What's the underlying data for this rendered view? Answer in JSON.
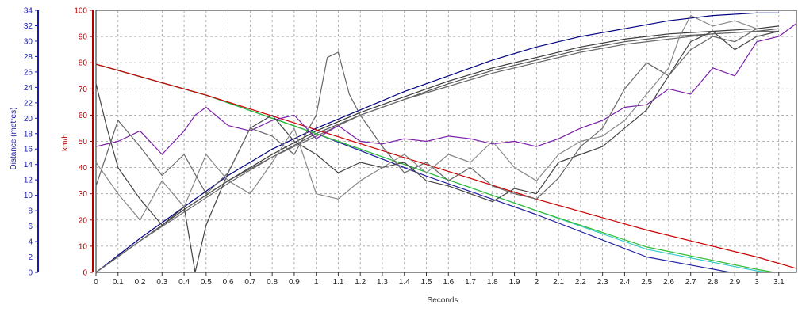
{
  "chart_data": {
    "type": "line",
    "xlabel": "Seconds",
    "xlim": [
      0,
      3.18
    ],
    "x_ticks": [
      "0",
      "0.1",
      "0.2",
      "0.3",
      "0.4",
      "0.5",
      "0.6",
      "0.7",
      "0.8",
      "0.9",
      "1",
      "1.1",
      "1.2",
      "1.3",
      "1.4",
      "1.5",
      "1.6",
      "1.7",
      "1.8",
      "1.9",
      "2",
      "2.1",
      "2.2",
      "2.3",
      "2.4",
      "2.5",
      "2.6",
      "2.7",
      "2.8",
      "2.9",
      "3",
      "3.1"
    ],
    "grid": true,
    "axes": {
      "distance": {
        "label": "Distance (metres)",
        "range": [
          0,
          34
        ],
        "ticks": [
          0,
          2,
          4,
          6,
          8,
          10,
          12,
          14,
          16,
          18,
          20,
          22,
          24,
          26,
          28,
          30,
          32,
          34
        ],
        "color": "#1a1aa6"
      },
      "speed": {
        "label": "km/h",
        "range": [
          0,
          100
        ],
        "ticks": [
          0,
          10,
          20,
          30,
          40,
          50,
          60,
          70,
          80,
          90,
          100
        ],
        "color": "#b00000"
      }
    },
    "series": [
      {
        "axis": "speed",
        "color": "#000080",
        "x": [
          0,
          0.2,
          0.4,
          0.6,
          0.8,
          1.0,
          1.2,
          1.4,
          1.6,
          1.8,
          2.0,
          2.2,
          2.4,
          2.6,
          2.8,
          3.0,
          3.1
        ],
        "values": [
          0,
          13,
          25,
          37,
          47,
          55,
          62,
          69,
          75,
          81,
          86,
          90,
          93,
          96,
          98,
          99,
          99
        ]
      },
      {
        "axis": "speed",
        "color": "#3a3a3a",
        "x": [
          0,
          0.2,
          0.4,
          0.6,
          0.8,
          1.0,
          1.2,
          1.4,
          1.6,
          1.8,
          2.0,
          2.2,
          2.4,
          2.6,
          2.8,
          3.0,
          3.1
        ],
        "values": [
          0,
          12,
          24,
          35,
          45,
          54,
          61,
          67,
          73,
          78,
          82,
          86,
          89,
          91,
          92,
          93,
          94
        ]
      },
      {
        "axis": "speed",
        "color": "#555555",
        "x": [
          0,
          0.2,
          0.4,
          0.6,
          0.8,
          1.0,
          1.2,
          1.4,
          1.6,
          1.8,
          2.0,
          2.2,
          2.4,
          2.6,
          2.8,
          3.0,
          3.1
        ],
        "values": [
          0,
          12,
          24,
          35,
          44,
          53,
          60,
          66,
          72,
          77,
          81,
          85,
          88,
          90,
          91,
          92,
          93
        ]
      },
      {
        "axis": "speed",
        "color": "#6a6a6a",
        "x": [
          0,
          0.2,
          0.4,
          0.6,
          0.8,
          1.0,
          1.2,
          1.4,
          1.6,
          1.8,
          2.0,
          2.2,
          2.4,
          2.6,
          2.8,
          3.0,
          3.1
        ],
        "values": [
          0,
          12,
          23,
          34,
          44,
          52,
          60,
          66,
          71,
          76,
          80,
          84,
          87,
          89,
          91,
          92,
          92
        ]
      },
      {
        "axis": "distance",
        "color": "#2020a0",
        "x": [
          0,
          0.5,
          1.0,
          1.5,
          2.0,
          2.5,
          2.88
        ],
        "values": [
          27,
          23,
          18,
          12.5,
          7.5,
          2,
          0
        ]
      },
      {
        "axis": "distance",
        "color": "#33cccc",
        "x": [
          0,
          0.5,
          1.0,
          1.5,
          2.0,
          2.5,
          3.0,
          3.05
        ],
        "values": [
          27,
          23,
          18,
          13,
          8,
          3,
          0.2,
          0
        ]
      },
      {
        "axis": "distance",
        "color": "#33bb33",
        "x": [
          0,
          0.5,
          1.0,
          1.5,
          2.0,
          2.5,
          3.0,
          3.08
        ],
        "values": [
          27,
          23,
          18,
          13,
          8,
          3.3,
          0.4,
          0
        ]
      },
      {
        "axis": "distance",
        "color": "#cc0000",
        "x": [
          0,
          0.5,
          1.0,
          1.5,
          2.0,
          2.5,
          3.0,
          3.18
        ],
        "values": [
          27,
          23,
          18.5,
          14,
          9.5,
          5.5,
          2,
          0.5
        ]
      },
      {
        "axis": "speed",
        "color": "#7a1fa8",
        "x": [
          0,
          0.1,
          0.2,
          0.3,
          0.4,
          0.45,
          0.5,
          0.6,
          0.7,
          0.8,
          0.9,
          1.0,
          1.1,
          1.2,
          1.3,
          1.4,
          1.5,
          1.6,
          1.7,
          1.8,
          1.9,
          2.0,
          2.1,
          2.2,
          2.3,
          2.4,
          2.5,
          2.6,
          2.7,
          2.8,
          2.9,
          3.0,
          3.1,
          3.18
        ],
        "values": [
          48,
          50,
          54,
          45,
          54,
          60,
          63,
          56,
          54,
          58,
          60,
          51,
          56,
          50,
          49,
          51,
          50,
          52,
          51,
          49,
          50,
          48,
          51,
          55,
          58,
          63,
          64,
          70,
          68,
          78,
          75,
          88,
          90,
          95
        ]
      },
      {
        "axis": "speed",
        "color": "#444444",
        "x": [
          0,
          0.05,
          0.1,
          0.2,
          0.3,
          0.4,
          0.45,
          0.5,
          0.6,
          0.7,
          0.8,
          0.9,
          1.0,
          1.1,
          1.2,
          1.3,
          1.4,
          1.5,
          1.6,
          1.7,
          1.8,
          1.9,
          2.0,
          2.1,
          2.2,
          2.3,
          2.4,
          2.5,
          2.6,
          2.7,
          2.8,
          2.9,
          3.0,
          3.1
        ],
        "values": [
          72,
          55,
          40,
          28,
          18,
          25,
          0,
          18,
          38,
          55,
          60,
          50,
          45,
          38,
          42,
          40,
          42,
          35,
          33,
          30,
          27,
          32,
          30,
          42,
          45,
          48,
          55,
          62,
          75,
          88,
          92,
          85,
          90,
          92
        ]
      },
      {
        "axis": "speed",
        "color": "#666666",
        "x": [
          0,
          0.1,
          0.2,
          0.3,
          0.4,
          0.5,
          0.6,
          0.7,
          0.8,
          0.9,
          1.0,
          1.05,
          1.1,
          1.15,
          1.2,
          1.3,
          1.4,
          1.5,
          1.6,
          1.7,
          1.8,
          1.9,
          2.0,
          2.1,
          2.2,
          2.3,
          2.4,
          2.5,
          2.6,
          2.7,
          2.8,
          2.9,
          3.0
        ],
        "values": [
          33,
          58,
          48,
          37,
          45,
          30,
          38,
          55,
          52,
          45,
          60,
          82,
          84,
          68,
          60,
          48,
          38,
          42,
          35,
          40,
          33,
          30,
          28,
          36,
          48,
          55,
          70,
          80,
          75,
          85,
          90,
          88,
          93
        ]
      },
      {
        "axis": "speed",
        "color": "#888888",
        "x": [
          0,
          0.1,
          0.2,
          0.3,
          0.4,
          0.5,
          0.6,
          0.7,
          0.8,
          0.9,
          1.0,
          1.1,
          1.2,
          1.3,
          1.4,
          1.5,
          1.6,
          1.7,
          1.8,
          1.9,
          2.0,
          2.1,
          2.2,
          2.3,
          2.4,
          2.5,
          2.6,
          2.65,
          2.7,
          2.8,
          2.9,
          3.0
        ],
        "values": [
          42,
          30,
          20,
          35,
          25,
          45,
          35,
          30,
          42,
          55,
          30,
          28,
          35,
          40,
          45,
          38,
          45,
          42,
          50,
          40,
          35,
          45,
          50,
          52,
          58,
          68,
          78,
          90,
          98,
          94,
          96,
          93
        ]
      }
    ]
  }
}
